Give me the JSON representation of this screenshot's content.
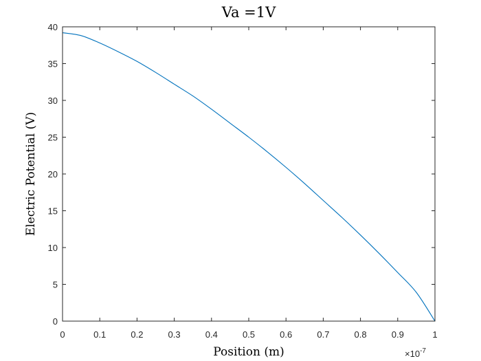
{
  "chart_data": {
    "type": "line",
    "title": "Va =1V",
    "xlabel_main": "Position ",
    "xlabel_unit": "(m)",
    "ylabel": "Electric Potential (V)",
    "x_exponent_label": "×10",
    "x_exponent_power": "-7",
    "xlim": [
      0,
      1
    ],
    "ylim": [
      0,
      40
    ],
    "xticks": [
      0,
      0.1,
      0.2,
      0.3,
      0.4,
      0.5,
      0.6,
      0.7,
      0.8,
      0.9,
      1
    ],
    "xtick_labels": [
      "0",
      "0.1",
      "0.2",
      "0.3",
      "0.4",
      "0.5",
      "0.6",
      "0.7",
      "0.8",
      "0.9",
      "1"
    ],
    "yticks": [
      0,
      5,
      10,
      15,
      20,
      25,
      30,
      35,
      40
    ],
    "ytick_labels": [
      "0",
      "5",
      "10",
      "15",
      "20",
      "25",
      "30",
      "35",
      "40"
    ],
    "grid": false,
    "box": true,
    "series": [
      {
        "color": "#0072BD",
        "x": [
          0,
          0.05,
          0.1,
          0.15,
          0.2,
          0.25,
          0.3,
          0.35,
          0.4,
          0.45,
          0.5,
          0.55,
          0.6,
          0.65,
          0.7,
          0.75,
          0.8,
          0.85,
          0.9,
          0.95,
          1.0
        ],
        "y": [
          39.2,
          38.8,
          37.8,
          36.6,
          35.3,
          33.8,
          32.2,
          30.6,
          28.8,
          26.9,
          25.0,
          23.0,
          20.9,
          18.7,
          16.4,
          14.1,
          11.7,
          9.2,
          6.6,
          3.9,
          0.0
        ]
      }
    ]
  }
}
